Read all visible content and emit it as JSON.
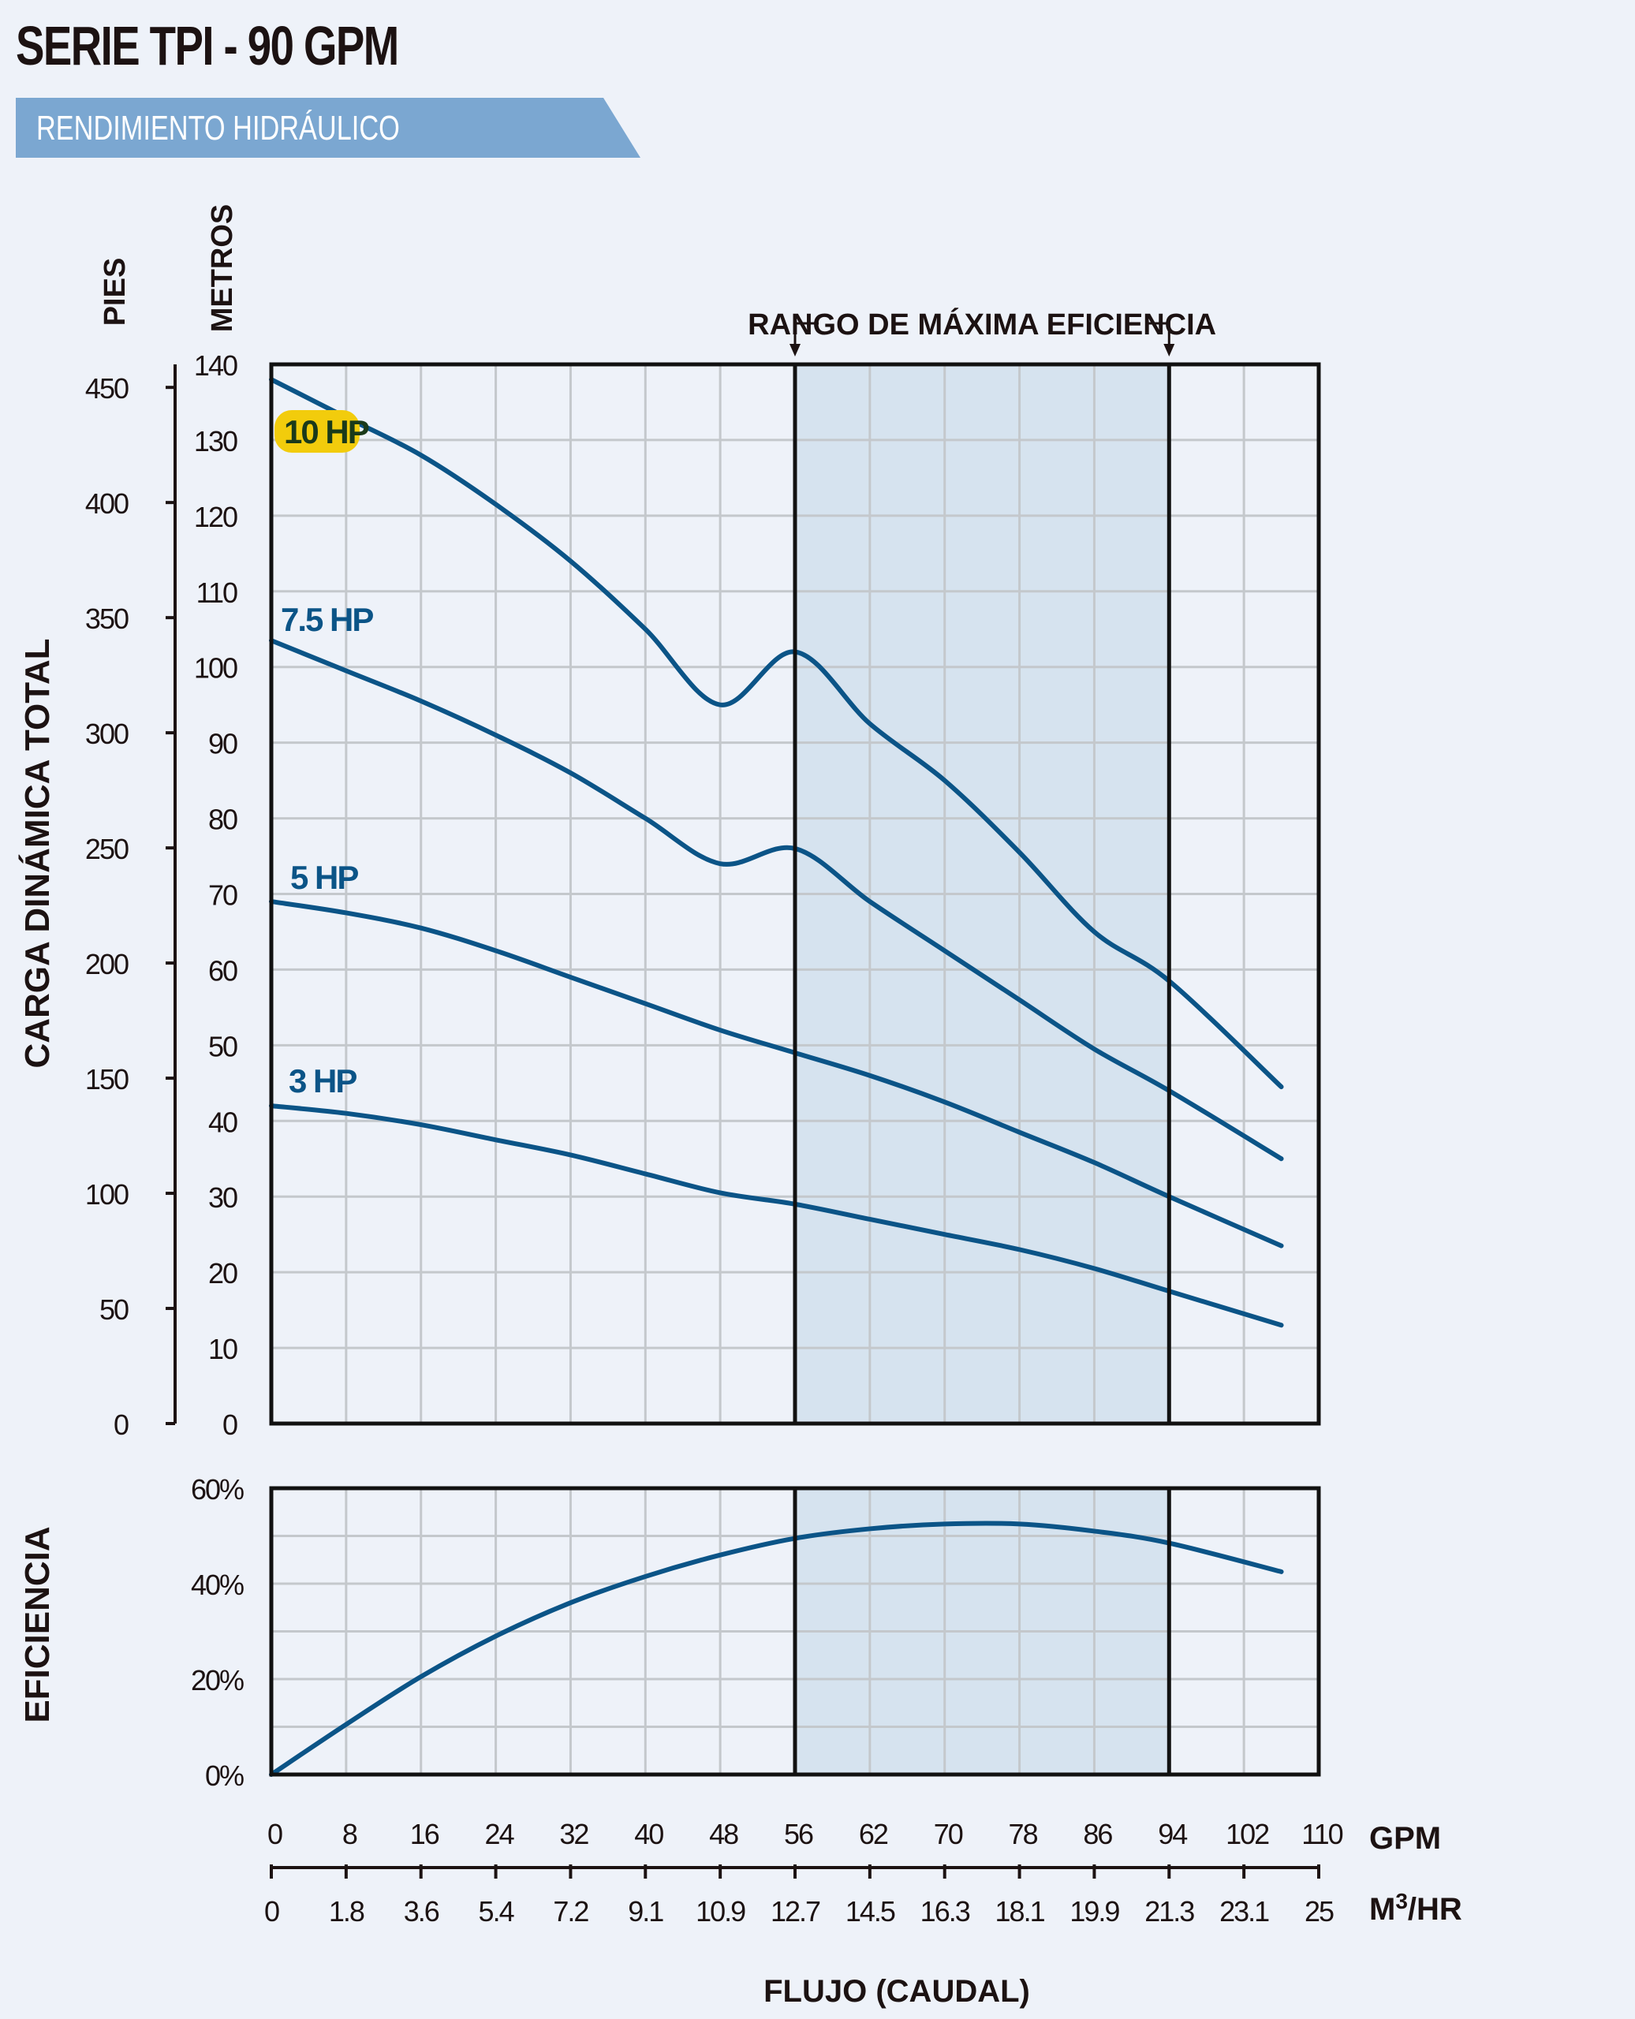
{
  "page": {
    "title": "SERIE TPI - 90 GPM",
    "subtitle": "RENDIMIENTO HIDRÁULICO"
  },
  "colors": {
    "background": "#eef2f9",
    "banner": "#7ba7d1",
    "curve": "#0b5487",
    "shade": "#d6e3ef",
    "grid": "#c4c8cc",
    "frame": "#111111",
    "highlight": "#f2cc0c"
  },
  "chart_data": [
    {
      "type": "line",
      "title": "",
      "ylabel": "CARGA DINÁMICA TOTAL",
      "y_unit_left": "PIES",
      "y_unit_right": "METROS",
      "xlabel": "FLUJO (CAUDAL)",
      "x_unit": "GPM",
      "x_unit_secondary": "M3/HR",
      "xlim": [
        0,
        110
      ],
      "ylim_metros": [
        0,
        140
      ],
      "ylim_pies": [
        0,
        460
      ],
      "grid": true,
      "x_ticks": [
        "0",
        "8",
        "16",
        "24",
        "32",
        "40",
        "48",
        "56",
        "62",
        "70",
        "78",
        "86",
        "94",
        "102",
        "110"
      ],
      "x_ticks_m3hr": [
        "0",
        "1.8",
        "3.6",
        "5.4",
        "7.2",
        "9.1",
        "10.9",
        "12.7",
        "14.5",
        "16.3",
        "18.1",
        "19.9",
        "21.3",
        "23.1",
        "25"
      ],
      "y_ticks_metros": [
        "0",
        "10",
        "20",
        "30",
        "40",
        "50",
        "60",
        "70",
        "80",
        "90",
        "100",
        "110",
        "120",
        "130",
        "140"
      ],
      "y_ticks_pies": [
        "0",
        "50",
        "100",
        "150",
        "200",
        "250",
        "300",
        "350",
        "400",
        "450"
      ],
      "highlight_band": {
        "label": "RANGO DE MÁXIMA EFICIENCIA",
        "x_range": [
          56,
          94
        ]
      },
      "series": [
        {
          "name": "10 HP",
          "x": [
            0,
            8,
            16,
            24,
            32,
            40,
            48,
            56,
            62,
            70,
            78,
            86,
            94,
            106
          ],
          "y": [
            138,
            133,
            128,
            121.5,
            114,
            105,
            95,
            102,
            92.5,
            85,
            75.5,
            65,
            58.5,
            44.5
          ]
        },
        {
          "name": "7.5 HP",
          "x": [
            0,
            8,
            16,
            24,
            32,
            40,
            48,
            56,
            62,
            70,
            78,
            86,
            94,
            106
          ],
          "y": [
            103.5,
            99.5,
            95.5,
            91,
            86,
            80,
            74,
            76,
            69,
            62.5,
            56,
            49.5,
            44,
            35
          ]
        },
        {
          "name": "5 HP",
          "x": [
            0,
            8,
            16,
            24,
            32,
            40,
            48,
            56,
            62,
            70,
            78,
            86,
            94,
            106
          ],
          "y": [
            69,
            67.5,
            65.5,
            62.5,
            59,
            55.5,
            52,
            49,
            46,
            42.5,
            38.5,
            34.5,
            30,
            23.5
          ]
        },
        {
          "name": "3 HP",
          "x": [
            0,
            8,
            16,
            24,
            32,
            40,
            48,
            56,
            62,
            70,
            78,
            86,
            94,
            106
          ],
          "y": [
            42,
            41,
            39.5,
            37.5,
            35.5,
            33,
            30.5,
            29,
            27,
            25,
            23,
            20.5,
            17.5,
            13
          ]
        }
      ]
    },
    {
      "type": "line",
      "ylabel": "EFICIENCIA",
      "xlim": [
        0,
        110
      ],
      "ylim": [
        0,
        60
      ],
      "grid": true,
      "y_ticks": [
        "0%",
        "20%",
        "40%",
        "60%"
      ],
      "highlight_band": {
        "x_range": [
          56,
          94
        ]
      },
      "series": [
        {
          "x": [
            0,
            8,
            16,
            24,
            32,
            40,
            48,
            56,
            62,
            70,
            78,
            86,
            94,
            106
          ],
          "y": [
            0,
            10.5,
            20.5,
            29,
            36,
            41.5,
            46,
            49.5,
            51.5,
            52.5,
            52.5,
            51,
            48.5,
            42.5
          ]
        }
      ]
    }
  ]
}
